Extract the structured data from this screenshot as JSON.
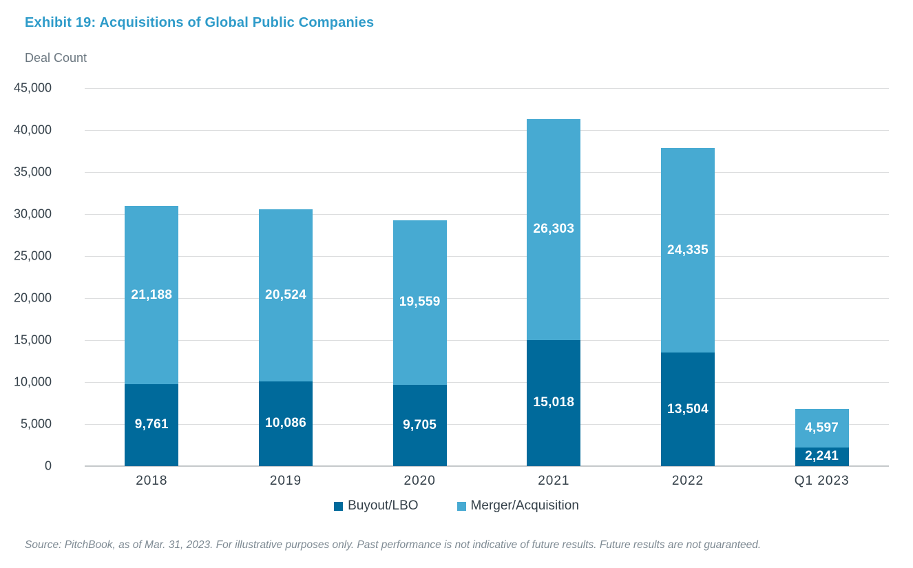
{
  "title": "Exhibit 19: Acquisitions of Global Public Companies",
  "axis_title": "Deal Count",
  "source_note": "Source: PitchBook, as of Mar. 31, 2023. For illustrative purposes only. Past performance is not indicative of future results. Future results are not guaranteed.",
  "colors": {
    "title": "#2E9BC9",
    "buyout_lbo": "#006A9B",
    "merger_acquisition": "#47AAD2",
    "axis_text": "#333F48",
    "muted_text": "#6B7780",
    "gridline": "#DDDEDF"
  },
  "legend": {
    "items": [
      {
        "label": "Buyout/LBO",
        "color": "#006A9B"
      },
      {
        "label": "Merger/Acquisition",
        "color": "#47AAD2"
      }
    ]
  },
  "chart_data": {
    "type": "bar",
    "stacked": true,
    "title": "Exhibit 19: Acquisitions of Global Public Companies",
    "ylabel": "Deal Count",
    "xlabel": "",
    "categories": [
      "2018",
      "2019",
      "2020",
      "2021",
      "2022",
      "Q1 2023"
    ],
    "series": [
      {
        "name": "Buyout/LBO",
        "color": "#006A9B",
        "values": [
          9761,
          10086,
          9705,
          15018,
          13504,
          2241
        ]
      },
      {
        "name": "Merger/Acquisition",
        "color": "#47AAD2",
        "values": [
          21188,
          20524,
          19559,
          26303,
          24335,
          4597
        ]
      }
    ],
    "totals": [
      30949,
      30610,
      29264,
      41321,
      37839,
      6838
    ],
    "ylim": [
      0,
      45000
    ],
    "ytick_step": 5000,
    "ytick_labels": [
      "0",
      "5,000",
      "10,000",
      "15,000",
      "20,000",
      "25,000",
      "30,000",
      "35,000",
      "40,000",
      "45,000"
    ],
    "grid": true,
    "legend_position": "bottom",
    "data_labels": true
  }
}
